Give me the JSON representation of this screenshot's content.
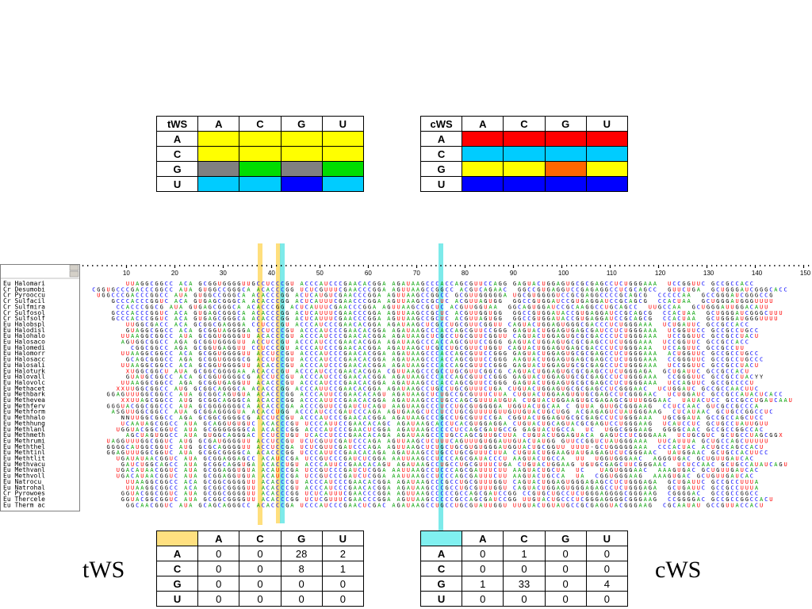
{
  "tws_matrix": {
    "corner": "tWS",
    "columns": [
      "A",
      "C",
      "G",
      "U"
    ],
    "rows": [
      {
        "label": "A",
        "colors": [
          "#ffff00",
          "#ffff00",
          "#ffff00",
          "#ffff00"
        ]
      },
      {
        "label": "C",
        "colors": [
          "#ffff00",
          "#ffff00",
          "#ffff00",
          "#ffff00"
        ]
      },
      {
        "label": "G",
        "colors": [
          "#808080",
          "#00dd00",
          "#808080",
          "#00dd00"
        ]
      },
      {
        "label": "U",
        "colors": [
          "#00ccff",
          "#00ccff",
          "#0000ff",
          "#00ccff"
        ]
      }
    ]
  },
  "cws_matrix": {
    "corner": "cWS",
    "columns": [
      "A",
      "C",
      "G",
      "U"
    ],
    "rows": [
      {
        "label": "A",
        "colors": [
          "#ff0000",
          "#ff0000",
          "#ff0000",
          "#ff0000"
        ]
      },
      {
        "label": "C",
        "colors": [
          "#00ccff",
          "#00ccff",
          "#00ccff",
          "#00ccff"
        ]
      },
      {
        "label": "G",
        "colors": [
          "#ffff00",
          "#ffff00",
          "#ff6600",
          "#ffff00"
        ]
      },
      {
        "label": "U",
        "colors": [
          "#0000ff",
          "#0000ff",
          "#0000ff",
          "#0000ff"
        ]
      }
    ]
  },
  "tws_counts": {
    "header_color": "#ffe080",
    "columns": [
      "A",
      "C",
      "G",
      "U"
    ],
    "rows": [
      {
        "label": "A",
        "values": [
          "0",
          "0",
          "28",
          "2"
        ]
      },
      {
        "label": "C",
        "values": [
          "0",
          "0",
          "8",
          "1"
        ]
      },
      {
        "label": "G",
        "values": [
          "0",
          "0",
          "0",
          "0"
        ]
      },
      {
        "label": "U",
        "values": [
          "0",
          "0",
          "0",
          "0"
        ]
      }
    ]
  },
  "cws_counts": {
    "header_color": "#80f0f0",
    "columns": [
      "A",
      "C",
      "G",
      "U"
    ],
    "rows": [
      {
        "label": "A",
        "values": [
          "0",
          "1",
          "0",
          "0"
        ]
      },
      {
        "label": "C",
        "values": [
          "0",
          "0",
          "0",
          "0"
        ]
      },
      {
        "label": "G",
        "values": [
          "1",
          "33",
          "0",
          "4"
        ]
      },
      {
        "label": "U",
        "values": [
          "0",
          "0",
          "0",
          "0"
        ]
      }
    ]
  },
  "tws_label": "tWS",
  "cws_label": "cWS",
  "alignment": {
    "ruler": [
      "10",
      "20",
      "30",
      "40",
      "50",
      "60",
      "70",
      "80",
      "90",
      "100",
      "110",
      "120",
      "130",
      "140",
      "150"
    ],
    "highlight_colors": {
      "tws": "#ffd966",
      "cws": "#66e6e6"
    },
    "nucleotide_colors": {
      "A": "#00a000",
      "C": "#0000ff",
      "G": "#000000",
      "U": "#ff0000",
      "X": "#ff0000"
    },
    "rows": [
      {
        "name": "Eu Halomari",
        "seq": "         UUAGGCGGCC ACA GCGGUGGGGUUGCCUCCCGU ACCCAUCCCGAACACGGA AGAUAAGCCCACCAGCGUUCCAGG GAGUACUGGAGUGCGCGAGCCUCUGGGAAA  UCCGGUUC GCCGCCACC"
      },
      {
        "name": "Cr Desumobi",
        "seq": "  CGGUGCCCGACCCGGCC AUA GUGGCCGGGCA ACACCCGG UCUCGUUUCGAACCCGGA AGUUAAGCCGGCC ACGUCAGAAC  GGCCGUGAGGUCCGAGAGGCCUCGCAGCC  GUUCUGA  GCUGGGAUCGGGCACC"
      },
      {
        "name": "Cr Pyrooccu",
        "seq": "   UGGCCCGACCCGGCC AUA GUGGCCGGGCA ACACCCGG ACUCAUGUCGAACCCGGA AGUUAAGCCGGCC GCGUUGGGGGA UGCGUGGGGUCCGCGAGGCCCCGCAGCG  CCCCCAA  GCCGGGAUCGGGCCG"
      },
      {
        "name": "Cr Sulfacil",
        "seq": "      GCCCACCCGGUC ACA GUGAGCGGGCA ACACCCGG ACUCAUUUCGAACCCGGA AGUUAAGCCGCUC ACGUUAGUGG  GGCCGUGGAUCCGUGAGGAUCCGCAGCG  CCACUAA  GCUGGGAUGGGUUUU"
      },
      {
        "name": "Cr Sulfmira",
        "seq": "       CCACCCGGCG AUA GUGAGCGGGCA ACACCCGG ACUCAUUUCGAACCCGGA AGUUAAGCCGCUC ACGUUGGUAA  GGCAGUGGAUCCGCAAGGCCUGCAGCC  UUGCCAA  GCUGGGAUUGGACAUU"
      },
      {
        "name": "Cr Sulfosol",
        "seq": "      GCCCACCCGGUC ACA GUGAGCGGGCA ACACCCGG ACUCAUUUCGAACCCGGA AGUUAAGCCGCUC ACGUUGGUGG  GGCCGUGGAUACCGUGAGGAUCCGCAGCG  CCACUAA  GCUGGGAUCGGGCUUU"
      },
      {
        "name": "Cr Sulfsolf",
        "seq": "      GCCCACCCGGUC ACA GUGAGCGGGCA ACACCCGG ACUCAUUUCGAACCCGGA AGUUAAGCCGCUC ACGUUAGUGG  GGCCGUGGAUACCGUGAGGAUCCGCAGCG  CCACUAA  GCUGGGAUGGGUUUU"
      },
      {
        "name": "Eu Halobspl",
        "seq": "         UUGGCGACC ACA GCGGCGAGGGA CCUCCCGU ACCCAUCCCGAACACGGA AGAUAAGCUCGCCUGCGUUCGGUU CAGUACUGGAGUGGGCGACCCUCUGGGAAA  UCUGAUUC GCCGCCACC"
      },
      {
        "name": "Eu Halodisl",
        "seq": "         GUAGGCGGCC ACA GCGGUAGGGGA CCUCCCGU ACCCAUCCCGAACACGGA AGAUAAGCCCACCAGCGUUCCGGG GAGUACUGGAGUGAGCGAUCCUCUGGGAAA  UCGGUUCC GCCGCCUGCC"
      },
      {
        "name": "Eu Halohalo",
        "seq": "        UUAAGGCGGCC AUA GCGGUGGGGUU ACACCCGU ACCCAUCCCGAACACGGA AGAUAAGCUCGCCUGCGUUCGGUU CAGUACUGGAGUGCGCGACCCUCUGGGAAA  UCCGGUUC GCCGCCUACU"
      },
      {
        "name": "Eu Halosaco",
        "seq": "        AGUGGCGGCC AGA GCGGUGGGGUU ACCUCCGU ACCCAUCCCGAACACGGA AGAUAAGCCCACCAGCGUUCCGGG GAGUACUGGAGUGCGCGAGCCUCUGGGAAA  UCCGGUUC GCCGCCACC"
      },
      {
        "name": "Eu Halomedi",
        "seq": "          CGGCGGCC AGA GCGGUGAGGUU CCUCCCGU ACCCAUCCCGAACACGGA AGAUAAGCUCGCCUGCGUUCUGGU CAGUACUGGAGUGAGCGACCCUCUGGGAAA  UCCAGUUC GCCGCCUU"
      },
      {
        "name": "Eu Halomorr",
        "seq": "        UUAAGGCGGCC ACA GCGGUGGGGUU ACCUCCGU ACCCAUCCCGAACACGGA AGAUAAGCCCACCAGCGUUCCGGG GAGUACUGGAGUGCGCGAGCCUCUGGGAAA  ACUGGUUC GCCGCCUGCC"
      },
      {
        "name": "Eu Halosacc",
        "seq": "         GCAGCGGGCC AGA GCGGUGGGGCG ACCUCCGU ACCCAUCCCGAACACGGA AGAUAAGCCCACCAGCGUUCCGGG AAGUACUGGAGUGAGCGAGCCUCUGGGAAA  CCGGGUUC GCCGCCUGCCC"
      },
      {
        "name": "Eu Halosali",
        "seq": "        UUAAGGCGGCC ACA GCGGUGGGGUU ACACCCGU ACCCAUCCCGAACACGGA AGAUAAGCCCACCAGCGUUCCGGG GAGUACUGGAGUGCGCGAGCCUCUGGGAAA  UCCGGUUC GCCGCCUACU"
      },
      {
        "name": "Eu Haloturk",
        "seq": "         XUGGCGGCU AUA GCGGCGGGGAA ACACCCGU ACCCAUCCCGAACACGGA CGUUAAGCCCGCCUGCGUUCGGCG CAGUACUGGAGUGCGCGAGCCUCUGGGAGA  GCUGAUUC GCCGCCACU"
      },
      {
        "name": "Eu Halovall",
        "seq": "         GUAUGCGGCC ACA GCGGUGGGGCG ACCUCCGU ACCCAUCCCGAACACGGA AGAUAAGCCCACCAGCGUUCCGGG GAGUACUGGAGUGCGCGAGCCUCUGGGAAA  CCGGGUUC GCCGCCUACYY"
      },
      {
        "name": "Eu Halovolc",
        "seq": "        UUAAGGCGGCC AGA GCGGUGAGGUU ACACCCGU ACCCAUCCCGAACACGGA AGAUAAGCCCACCAGCGUUCCGGG GAGUACUGGAGUGCGCGAGCCUCUGGGAAA  UCCAGUUC GCCGCCCCU"
      },
      {
        "name": "Eu Methacet",
        "seq": "       XXUUGGCGGCC AUG GCGGCAGGGCA ACACCCGG ACCCAUUCCGAACACGGA AGAUAAGCCUGCCUGCGUUUCUGA CUGUACUGGAGUGCGCGAGCCUCGGGAAC  UCUGGAUC GCCGCCAACUUC"
      },
      {
        "name": "Eu Methbark",
        "seq": "     GGAGUUUGGCGGCC AUA GCGGCAGUGUA ACACCCGG ACCCAUUCCGAACACAGU AGAUAAGCUCUGCCGCGUUUCUUA CUGUACUGGAAGUGUGCGAGCCUCGGGAAC  UCUGGAUC GCCGCCAUACUCACC"
      },
      {
        "name": "Eu Methevea",
        "seq": "        XXUUAGCGGCC AUG GCGGCAGGGCA ACACCCGG ACCCAUUCCGAACACGGA AGAUAAGCCCUGCCAGCGUUUAUGUA CUGUACUGGAAGUGCGAGAGCGUUUGGGAAC  UAUACUCC GCCGCCUGAUCAAU"
      },
      {
        "name": "Eu Methferv",
        "seq": "     GGGUACGGCGGCCC AUA GCGGGGGGGCA ACACCCGA ACCCGUUCCGAUCUCAGU AAGUAAGCCCUCCUGCGUGGGGA UGGUACUGCAA C GUUA GUUGCGGGAAG  CCUCCAAC GUCGCCGCCCA"
      },
      {
        "name": "Eu Methform",
        "seq": "      ASGUUGGCGGCC AUA GCGGAGGGGUA ACACCUGG ACCCAUCCCGAUCCCAGA AGUGAAGCUCCUCCUGCGUUUUGUUGUUGUACUGCUGG ACGAGAGUCUAUGGGAAG  CUCAUAAC GCUGCCGGCCUC"
      },
      {
        "name": "Eu Methhalo",
        "seq": "        NNUUGGCGGCC AGA GCGGCGGGGCG ACCUCCGU ACCCAUCCCGAACACGGA AGAUAAGCCCGCCUGCGUUCCGA CGGUACUGGAGUGCGCGAGCCUCUGGGAAA  UGCGGAUA GCCGCCAGCUCC"
      },
      {
        "name": "Eu Methhung",
        "seq": "        UCAAUAGCGGCC AUA GCAGGUGUGUC ACACCCGU UCCCAUUCCGAACACAGC AGAUAAGCACCUCACGUGGAGGA CUGUACUGCAGUACGCGAGUCCUGGGAAG  UCAUCCUC GCUGCCUAUUGUU"
      },
      {
        "name": "Eu Methlanl",
        "seq": "       UGGUACGGCGGUC AUA GCGGGGGGGCA ACACCCGG ACCCAUCCCGAACUCGGA AGAUAAGCCCCCUCCAGCGAUGCCG GAGUACUGCCA  UC  UGGCGGGAAG  GGGGCAAC GCCGCCGGCCAC"
      },
      {
        "name": "Eu Methmeth",
        "seq": "         AGCUAGUGGCC AUA GUGGCAGGGAC CCUCCUGU UCACCUCCCGAACACAGA AGAUAAGCCCUGCCAGCGUUGCUUA CUGUACUGGAGUACA GAGUCCUCGGGAAA  UCUGCGUC GCUGCCUAGCGGX"
      },
      {
        "name": "Eu Methrumi",
        "seq": "     UAGGUUUGGCGGUC AUG GCGAUGGGGUU ACCUCCGU UCUCGUUCGAUCCCAGA AGUUAAGCUCUUUCAGUUUGUGGAUUGUACUAUGG GUUCCGGUCUAUGGGAAA  UUCAUUUA GCUGCCAGCUUUUU"
      },
      {
        "name": "Eu Meththel",
        "seq": "     GGGGCAUGGCGGUC AUG GCGCAGGGGUU ACCUCCGA UCUCGUUCGAUCCCAGA AGUUAAGCUCUGCUGCGUGUGGGAUGGUACUGCGGUU UUUU-GCUGGGGGAAA  CCCACUAC ACUGCCAGCCACU"
      },
      {
        "name": "Eu Methtinl",
        "seq": "     GGAGUUUGGCGGUC AUA GCGGCGGGGCA ACACCCGG UCCCAUUCCGAACACAGA AGAUAAGCCUGCCUGCGUUUCUUA CUGUACUGGAAGUAUGAGAGUCUCGGGAAC  UAUGGAAC GCUGCCACUUCC"
      },
      {
        "name": "Eu Methtlit",
        "seq": "       UGAUAUAACGGUC AUA GCGGAGGAGCC ACAUCCGA UCCGUCCCGAUCUCGGA AAUUAAGCCUCCCAGCGAUACCCU AAGUACUGCCA  UU  UGGUGGGAAC  AGGGUGAC GCUGUUGAUCAC"
      },
      {
        "name": "Eu Methvacu",
        "seq": "        GAUCUGGCAGCC AUA GCGGCAGGUGA ACACCUGU ACCCAUUCCGAACACAGU AGAUAAGCCUGCCUGCGUUUCUGA CUGUACUGGAAG UGUGCGAGCUUCGGGAAC  UCUCCAAC GCUGCCAUAUCAGU"
      },
      {
        "name": "Eu Methvanl",
        "seq": "       UGACAUAACGGUC AUA GCGGAGGUGUA ACAUCCGA UCCGUCCCGAUCUCGGA AAUUAAGCCUCCCAGCGAUUUCUU AAGUACUGCUA  UC   UAGUGGGAAC  AAAGUGAC GCUGUUGAUCAC"
      },
      {
        "name": "Eu Methvoll",
        "seq": "       UGACAUAACGGUC AUA GCGGAGGUGUA ACAUCCGA UCCGUCCCGAUCUCGGA AAUUAAGCCUCCCAGCGAUUUCUU AAGUACUGCCA  UA  CGGUGGGAAG  AAAGUGAC GCUGUUGAUCAC"
      },
      {
        "name": "Eu Natrocu",
        "seq": "         UUAAGGCGGCC ACA GCGGCGGGGUU ACACCCGU ACCCAUCCCGAACACGGA AGAUAAGCCCGCCUGCGUUUGGU CAGUACUGGAGUGGGAGAGCCUCUGGGAGA  GCUGAUUC GCCGCCUUUA"
      },
      {
        "name": "Eu Natrohal",
        "seq": "         UUAAGGCGGCC ACA GCGGCGGGGUU ACACCCGU ACCCAUCCCGAACACGGA AGAUAAGCCCGCCUGCGUUUGGU CAGUACUGGAGUGGGAGAGCCUCUGGGAGA  GCUGAUUC GCCGCCUUUA"
      },
      {
        "name": "Cr Pyrowoes",
        "seq": "        GGUACGGCGGUC AUA GCGGCGGGGUU ACACCCGG UCUCAUUUCGAACCCGGA AGUUAAGCCCCCGCCAGCGAUCCGG CCGUGCUGCCUCUGGGAGGGGCGGGAAG  CGGGGAC  GCCGCCGGCC"
      },
      {
        "name": "Eu Thercele",
        "seq": "        GGUACGGCGGUC AUA GCGGCGGGGUU ACACCCGG UCUCGUUUCGAACCCGGA AGUUAAGCCCCCGCCAGCGAUCCGG UUGUACUGCCCUCGGGAGGGGCGGGAAG  CCGGGGAC GCCGCCGGCCACU"
      },
      {
        "name": "Eu Therm ac",
        "seq": "         GGCAACGGUC AUA GCAGCAGGGCC ACACCCGA UCCCAUCCCGAACUCGAC AGAUAAGCCUGCCUGCGUAUUGGU UUGUACUGUAUGCCGCGAGGUACGGGAAG  CGCAAUAU GCCGUUACCACU"
      }
    ]
  }
}
